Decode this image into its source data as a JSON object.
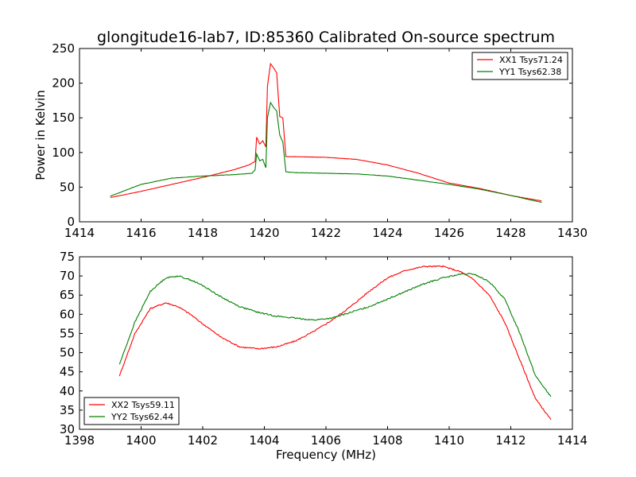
{
  "chart_data": [
    {
      "type": "line",
      "title": "glongitude16-lab7, ID:85360 Calibrated On-source spectrum",
      "xlabel": "",
      "ylabel": "Power in Kelvin",
      "xlim": [
        1414,
        1430
      ],
      "ylim": [
        0,
        250
      ],
      "xticks": [
        1414,
        1416,
        1418,
        1420,
        1422,
        1424,
        1426,
        1428,
        1430
      ],
      "yticks": [
        0,
        50,
        100,
        150,
        200,
        250
      ],
      "grid": false,
      "legend_position": "top-right",
      "series": [
        {
          "name": "XX1 Tsys71.24",
          "color": "#ff0000",
          "points": [
            [
              1415.0,
              35
            ],
            [
              1416.0,
              44
            ],
            [
              1417.0,
              54
            ],
            [
              1418.0,
              64
            ],
            [
              1419.0,
              75
            ],
            [
              1419.5,
              82
            ],
            [
              1419.7,
              87
            ],
            [
              1419.75,
              122
            ],
            [
              1419.85,
              112
            ],
            [
              1419.95,
              117
            ],
            [
              1420.05,
              108
            ],
            [
              1420.1,
              195
            ],
            [
              1420.2,
              228
            ],
            [
              1420.3,
              222
            ],
            [
              1420.4,
              215
            ],
            [
              1420.5,
              152
            ],
            [
              1420.6,
              150
            ],
            [
              1420.7,
              94
            ],
            [
              1421.0,
              94
            ],
            [
              1422.0,
              93
            ],
            [
              1423.0,
              90
            ],
            [
              1424.0,
              82
            ],
            [
              1425.0,
              70
            ],
            [
              1426.0,
              56
            ],
            [
              1427.0,
              48
            ],
            [
              1428.0,
              38
            ],
            [
              1429.0,
              30
            ]
          ]
        },
        {
          "name": "YY1 Tsys62.38",
          "color": "#008000",
          "points": [
            [
              1415.0,
              37
            ],
            [
              1416.0,
              54
            ],
            [
              1417.0,
              63
            ],
            [
              1418.0,
              66
            ],
            [
              1419.0,
              68
            ],
            [
              1419.6,
              70
            ],
            [
              1419.7,
              75
            ],
            [
              1419.75,
              98
            ],
            [
              1419.85,
              88
            ],
            [
              1419.95,
              90
            ],
            [
              1420.05,
              78
            ],
            [
              1420.1,
              150
            ],
            [
              1420.2,
              172
            ],
            [
              1420.3,
              165
            ],
            [
              1420.4,
              160
            ],
            [
              1420.5,
              125
            ],
            [
              1420.6,
              115
            ],
            [
              1420.7,
              72
            ],
            [
              1421.0,
              71
            ],
            [
              1422.0,
              70
            ],
            [
              1423.0,
              69
            ],
            [
              1424.0,
              66
            ],
            [
              1425.0,
              60
            ],
            [
              1426.0,
              54
            ],
            [
              1427.0,
              47
            ],
            [
              1428.0,
              38
            ],
            [
              1429.0,
              28
            ]
          ]
        }
      ]
    },
    {
      "type": "line",
      "title": "",
      "xlabel": "Frequency (MHz)",
      "ylabel": "",
      "xlim": [
        1398,
        1414
      ],
      "ylim": [
        30,
        75
      ],
      "xticks": [
        1398,
        1400,
        1402,
        1404,
        1406,
        1408,
        1410,
        1412,
        1414
      ],
      "yticks": [
        30,
        35,
        40,
        45,
        50,
        55,
        60,
        65,
        70,
        75
      ],
      "grid": false,
      "legend_position": "bottom-left",
      "series": [
        {
          "name": "XX2 Tsys59.11",
          "color": "#ff0000",
          "points": [
            [
              1399.3,
              44
            ],
            [
              1399.8,
              55
            ],
            [
              1400.3,
              61.5
            ],
            [
              1400.8,
              63
            ],
            [
              1401.2,
              62
            ],
            [
              1401.6,
              60
            ],
            [
              1402.0,
              57.5
            ],
            [
              1402.6,
              54
            ],
            [
              1403.2,
              51.5
            ],
            [
              1403.8,
              51
            ],
            [
              1404.4,
              51.5
            ],
            [
              1405.0,
              53
            ],
            [
              1405.6,
              55.5
            ],
            [
              1406.2,
              58.5
            ],
            [
              1406.8,
              62
            ],
            [
              1407.4,
              66
            ],
            [
              1408.0,
              69.5
            ],
            [
              1408.6,
              71.5
            ],
            [
              1409.2,
              72.5
            ],
            [
              1409.8,
              72.5
            ],
            [
              1410.4,
              71
            ],
            [
              1410.8,
              69
            ],
            [
              1411.3,
              65
            ],
            [
              1411.8,
              58
            ],
            [
              1412.3,
              48
            ],
            [
              1412.8,
              38
            ],
            [
              1413.3,
              32.5
            ]
          ]
        },
        {
          "name": "YY2 Tsys62.44",
          "color": "#008000",
          "points": [
            [
              1399.3,
              47
            ],
            [
              1399.8,
              58
            ],
            [
              1400.3,
              66
            ],
            [
              1400.8,
              69.5
            ],
            [
              1401.2,
              70
            ],
            [
              1401.6,
              69
            ],
            [
              1402.0,
              67.5
            ],
            [
              1402.6,
              64.5
            ],
            [
              1403.2,
              62
            ],
            [
              1403.8,
              60.5
            ],
            [
              1404.4,
              59.5
            ],
            [
              1405.0,
              59
            ],
            [
              1405.6,
              58.5
            ],
            [
              1406.2,
              59
            ],
            [
              1406.8,
              60.5
            ],
            [
              1407.4,
              62
            ],
            [
              1408.0,
              64
            ],
            [
              1408.6,
              66
            ],
            [
              1409.2,
              68
            ],
            [
              1409.8,
              69.5
            ],
            [
              1410.4,
              70.5
            ],
            [
              1410.8,
              70.5
            ],
            [
              1411.3,
              68.5
            ],
            [
              1411.8,
              64
            ],
            [
              1412.3,
              55
            ],
            [
              1412.8,
              44
            ],
            [
              1413.3,
              38.5
            ]
          ]
        }
      ]
    }
  ]
}
